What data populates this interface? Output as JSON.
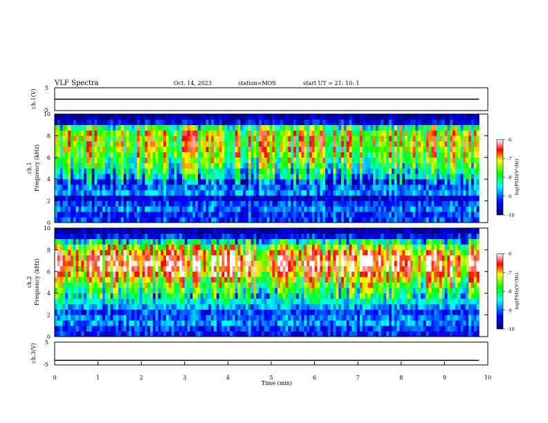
{
  "header": {
    "title": "VLF Spectra",
    "date": "Oct. 14, 2023",
    "station": "station=MOS",
    "start": "start  UT  =   21: 10: 1"
  },
  "colors": {
    "colormap": [
      "#000080",
      "#0000ff",
      "#00ffff",
      "#00ff00",
      "#ffff00",
      "#ff0000",
      "#ffffff"
    ],
    "trace": "#000000"
  },
  "chart_data": [
    {
      "type": "line",
      "id": "ch1_voltage",
      "ylabel": "ch.1(V)",
      "ylim": [
        -5,
        5
      ],
      "yticks": [
        "5",
        "-5"
      ],
      "series": [
        {
          "x": [
            0,
            9.8
          ],
          "y": [
            0,
            0
          ]
        }
      ]
    },
    {
      "type": "heatmap",
      "id": "ch1_spectrogram",
      "ylabel": "ch.1\nFrequency (kHz)",
      "ylabel_lines": [
        "ch.1",
        "Frequency (kHz)"
      ],
      "xlim": [
        0,
        10
      ],
      "ylim": [
        0,
        10
      ],
      "yticks": [
        "0",
        "2",
        "4",
        "6",
        "8",
        "10"
      ],
      "data_extent_x": [
        0,
        9.8
      ],
      "colorbar": {
        "label": "log(PSD)(V²/Hz)",
        "range": [
          -10,
          -6
        ],
        "ticks": [
          "-6",
          "-7",
          "-8",
          "-9",
          "-10"
        ]
      },
      "band_intensity_by_freq_kHz": {
        "freq": [
          0.25,
          0.75,
          1.25,
          1.75,
          2.25,
          2.75,
          3.25,
          3.75,
          4.25,
          4.75,
          5.25,
          5.75,
          6.25,
          6.75,
          7.25,
          7.75,
          8.25,
          8.75,
          9.25,
          9.75
        ],
        "log_psd": [
          -9.2,
          -9.3,
          -9.0,
          -9.2,
          -9.6,
          -8.9,
          -9.0,
          -9.4,
          -8.7,
          -8.5,
          -8.2,
          -8.0,
          -7.8,
          -7.6,
          -7.5,
          -7.5,
          -7.6,
          -8.2,
          -9.5,
          -9.9
        ]
      }
    },
    {
      "type": "heatmap",
      "id": "ch2_spectrogram",
      "ylabel": "ch.2\nFrequency (kHz)",
      "ylabel_lines": [
        "ch.2",
        "Frequency (kHz)"
      ],
      "xlim": [
        0,
        10
      ],
      "ylim": [
        0,
        10
      ],
      "yticks": [
        "0",
        "2",
        "4",
        "6",
        "8",
        "10"
      ],
      "data_extent_x": [
        0,
        9.8
      ],
      "colorbar": {
        "label": "log(PSD)(V²/Hz)",
        "range": [
          -10,
          -6
        ],
        "ticks": [
          "-6",
          "-7",
          "-8",
          "-9",
          "-10"
        ]
      },
      "band_intensity_by_freq_kHz": {
        "freq": [
          0.25,
          0.75,
          1.25,
          1.75,
          2.25,
          2.75,
          3.25,
          3.75,
          4.25,
          4.75,
          5.25,
          5.75,
          6.25,
          6.75,
          7.25,
          7.75,
          8.25,
          8.75,
          9.25,
          9.75
        ],
        "log_psd": [
          -9.4,
          -9.2,
          -8.9,
          -9.0,
          -9.2,
          -8.8,
          -8.5,
          -8.5,
          -8.3,
          -8.0,
          -7.6,
          -7.2,
          -6.9,
          -6.8,
          -6.9,
          -7.2,
          -7.8,
          -8.6,
          -9.4,
          -9.9
        ]
      }
    },
    {
      "type": "line",
      "id": "ch3_voltage",
      "ylabel": "ch.3(V)",
      "ylim": [
        -5,
        5
      ],
      "yticks": [
        "5",
        "-5"
      ],
      "xlabel": "Time (min)",
      "xlim": [
        0,
        10
      ],
      "xticks": [
        "0",
        "1",
        "2",
        "3",
        "4",
        "5",
        "6",
        "7",
        "8",
        "9",
        "10"
      ],
      "series": [
        {
          "x": [
            0,
            9.8
          ],
          "y": [
            -3,
            -3
          ]
        }
      ]
    }
  ]
}
